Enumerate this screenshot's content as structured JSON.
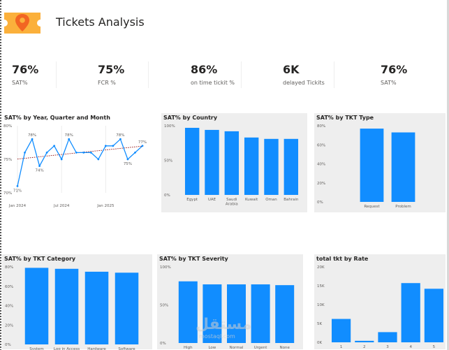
{
  "header": {
    "title": "Tickets Analysis",
    "logo_icon": "ticket-location-icon"
  },
  "kpis": [
    {
      "value": "76%",
      "label": "SAT%"
    },
    {
      "value": "75%",
      "label": "FCR %"
    },
    {
      "value": "86%",
      "label": "on time tickit %"
    },
    {
      "value": "6K",
      "label": "delayed Tickits"
    },
    {
      "value": "76%",
      "label": "SAT%"
    }
  ],
  "colors": {
    "bar": "#118dff",
    "line": "#118dff",
    "trend": "#8b0000",
    "panel_bg": "#eeeeee"
  },
  "watermark": {
    "text": "مستقل",
    "sub": "mostaql.com"
  },
  "chart_data": [
    {
      "id": "sat-by-date",
      "type": "line",
      "title": "SAT% by Year, Quarter and Month",
      "y_ticks": [
        "80%",
        "75%",
        "70%"
      ],
      "ylim": [
        70,
        80
      ],
      "x_ticks": [
        "Jan 2024",
        "Jul 2024",
        "Jan 2025"
      ],
      "x": [
        "Jan 2024",
        "Feb 2024",
        "Mar 2024",
        "Apr 2024",
        "May 2024",
        "Jun 2024",
        "Jul 2024",
        "Aug 2024",
        "Sep 2024",
        "Oct 2024",
        "Nov 2024",
        "Dec 2024",
        "Jan 2025",
        "Feb 2025",
        "Mar 2025",
        "Apr 2025",
        "May 2025",
        "Jun 2025"
      ],
      "values": [
        71,
        76,
        78,
        74,
        76,
        77,
        75,
        78,
        76,
        76,
        76,
        75,
        77,
        77,
        78,
        75,
        76,
        77
      ],
      "labels": [
        {
          "index": 0,
          "text": "71%"
        },
        {
          "index": 2,
          "text": "78%"
        },
        {
          "index": 3,
          "text": "74%"
        },
        {
          "index": 7,
          "text": "78%"
        },
        {
          "index": 14,
          "text": "78%"
        },
        {
          "index": 15,
          "text": "75%"
        },
        {
          "index": 17,
          "text": "77%"
        }
      ],
      "trendline": true
    },
    {
      "id": "sat-by-country",
      "type": "bar",
      "title": "SAT% by Country",
      "categories": [
        "Egypt",
        "UAE",
        "Saudi\nArabia",
        "Kuwait",
        "Oman",
        "Bahrain"
      ],
      "values": [
        97,
        94,
        92,
        83,
        81,
        81
      ],
      "y_ticks": [
        "100%",
        "50%",
        "0%"
      ],
      "ylim": [
        0,
        100
      ]
    },
    {
      "id": "sat-by-tkt-type",
      "type": "bar",
      "title": "SAT% by TKT Type",
      "categories": [
        "Request",
        "Problem"
      ],
      "values": [
        77,
        73
      ],
      "y_ticks": [
        "80%",
        "60%",
        "40%",
        "20%",
        "0%"
      ],
      "ylim": [
        0,
        80
      ]
    },
    {
      "id": "sat-by-tkt-category",
      "type": "bar",
      "title": "SAT% by TKT Category",
      "categories": [
        "System",
        "Log in Access",
        "Hardware",
        "Software"
      ],
      "values": [
        79,
        78,
        75,
        74
      ],
      "y_ticks": [
        "80%",
        "60%",
        "40%",
        "20%",
        "0%"
      ],
      "ylim": [
        0,
        80
      ]
    },
    {
      "id": "sat-by-tkt-severity",
      "type": "bar",
      "title": "SAT% by TKT Severity",
      "categories": [
        "High",
        "Low",
        "Normal",
        "Urgent",
        "None"
      ],
      "values": [
        81,
        77,
        77,
        77,
        76
      ],
      "y_ticks": [
        "100%",
        "50%",
        "0%"
      ],
      "ylim": [
        0,
        100
      ]
    },
    {
      "id": "total-tkt-by-rate",
      "type": "bar",
      "title": "total tkt by Rate",
      "categories": [
        "1",
        "2",
        "3",
        "4",
        "5"
      ],
      "values": [
        6200,
        400,
        2700,
        15700,
        14200
      ],
      "y_ticks": [
        "20K",
        "15K",
        "10K",
        "5K",
        "0K"
      ],
      "ylim": [
        0,
        20000
      ]
    }
  ]
}
